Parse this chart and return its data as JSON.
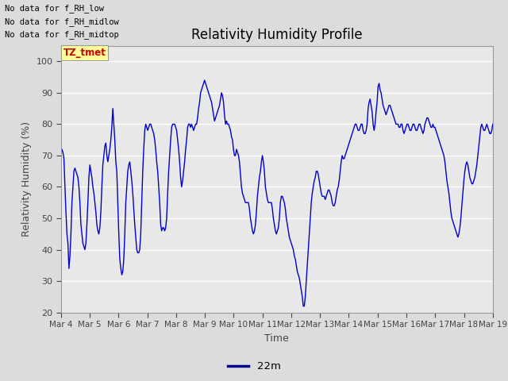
{
  "title": "Relativity Humidity Profile",
  "xlabel": "Time",
  "ylabel": "Relativity Humidity (%)",
  "ylim": [
    20,
    105
  ],
  "yticks": [
    20,
    30,
    40,
    50,
    60,
    70,
    80,
    90,
    100
  ],
  "legend_label": "22m",
  "line_color": "#0000CC",
  "legend_line_color": "#00008B",
  "annotations": [
    "No data for f_RH_low",
    "No data for f_RH_midlow",
    "No data for f_RH_midtop"
  ],
  "annotation_color": "black",
  "tz_label": "TZ_tmet",
  "tz_color": "#CC0000",
  "tz_bg": "#FFFF99",
  "background_color": "#DCDCDC",
  "plot_bg_color": "#E8E8E8",
  "grid_color": "white",
  "y_values": [
    70,
    72,
    71,
    69,
    60,
    52,
    45,
    42,
    34,
    38,
    45,
    55,
    60,
    65,
    66,
    65,
    64,
    63,
    60,
    55,
    48,
    45,
    42,
    41,
    40,
    42,
    48,
    55,
    63,
    67,
    65,
    63,
    60,
    58,
    55,
    52,
    48,
    46,
    45,
    47,
    52,
    60,
    67,
    70,
    73,
    74,
    70,
    68,
    70,
    72,
    75,
    79,
    85,
    80,
    75,
    68,
    65,
    55,
    45,
    37,
    34,
    32,
    33,
    37,
    45,
    55,
    60,
    65,
    67,
    68,
    65,
    62,
    58,
    53,
    48,
    44,
    40,
    39,
    39,
    40,
    45,
    55,
    65,
    72,
    78,
    80,
    79,
    78,
    79,
    80,
    80,
    79,
    78,
    77,
    75,
    72,
    68,
    65,
    60,
    55,
    48,
    46,
    47,
    47,
    46,
    47,
    50,
    58,
    65,
    70,
    75,
    79,
    80,
    80,
    80,
    79,
    78,
    75,
    72,
    68,
    63,
    60,
    62,
    65,
    68,
    72,
    75,
    79,
    80,
    80,
    79,
    80,
    79,
    78,
    79,
    80,
    80,
    82,
    85,
    87,
    90,
    91,
    92,
    93,
    94,
    93,
    92,
    91,
    90,
    89,
    88,
    87,
    85,
    83,
    81,
    82,
    83,
    84,
    85,
    86,
    88,
    90,
    89,
    87,
    83,
    80,
    81,
    80,
    80,
    79,
    78,
    76,
    75,
    72,
    70,
    70,
    72,
    71,
    70,
    68,
    64,
    60,
    58,
    57,
    56,
    55,
    55,
    55,
    55,
    53,
    50,
    48,
    46,
    45,
    46,
    48,
    52,
    57,
    60,
    63,
    65,
    68,
    70,
    68,
    65,
    60,
    58,
    56,
    55,
    55,
    55,
    55,
    53,
    50,
    48,
    46,
    45,
    46,
    47,
    50,
    55,
    57,
    57,
    56,
    55,
    53,
    50,
    48,
    46,
    44,
    43,
    42,
    41,
    40,
    38,
    37,
    35,
    33,
    32,
    31,
    29,
    27,
    25,
    22,
    22,
    25,
    30,
    35,
    40,
    45,
    50,
    55,
    58,
    60,
    62,
    63,
    65,
    65,
    64,
    62,
    60,
    58,
    57,
    57,
    57,
    56,
    57,
    58,
    59,
    59,
    58,
    57,
    55,
    54,
    54,
    55,
    57,
    59,
    60,
    62,
    65,
    68,
    70,
    69,
    69,
    70,
    71,
    72,
    73,
    74,
    75,
    76,
    77,
    78,
    79,
    80,
    80,
    79,
    78,
    78,
    79,
    80,
    80,
    78,
    77,
    77,
    78,
    80,
    85,
    87,
    88,
    86,
    84,
    80,
    78,
    80,
    84,
    87,
    92,
    93,
    91,
    90,
    88,
    86,
    85,
    84,
    83,
    84,
    85,
    86,
    86,
    85,
    84,
    83,
    82,
    81,
    80,
    80,
    80,
    79,
    79,
    80,
    80,
    78,
    77,
    78,
    79,
    80,
    80,
    79,
    78,
    78,
    79,
    80,
    80,
    79,
    78,
    78,
    79,
    80,
    80,
    79,
    78,
    77,
    78,
    80,
    81,
    82,
    82,
    81,
    80,
    79,
    79,
    80,
    79,
    79,
    78,
    77,
    76,
    75,
    74,
    73,
    72,
    71,
    70,
    68,
    65,
    62,
    60,
    58,
    55,
    52,
    50,
    49,
    48,
    47,
    46,
    45,
    44,
    45,
    47,
    50,
    54,
    58,
    62,
    65,
    67,
    68,
    67,
    65,
    63,
    62,
    61,
    61,
    62,
    63,
    65,
    67,
    70,
    73,
    76,
    79,
    80,
    79,
    78,
    78,
    79,
    80,
    79,
    78,
    77,
    77,
    78,
    80
  ]
}
